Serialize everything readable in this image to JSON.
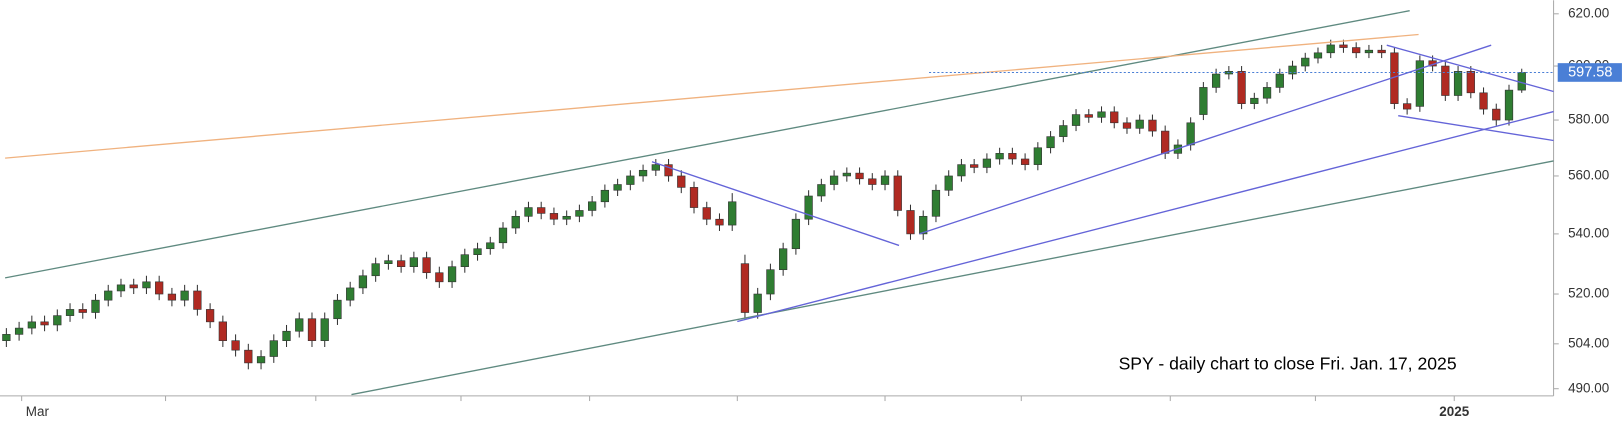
{
  "chart_data": {
    "type": "candlestick",
    "annotation": "SPY - daily chart to close Fri. Jan. 17, 2025",
    "up_color": "#2f7d32",
    "down_color": "#b02a22",
    "log_scale": true,
    "ylim": [
      487.8,
      625.3
    ],
    "yticks": [
      {
        "value": 620,
        "label": "620.00"
      },
      {
        "value": 600,
        "label": "600.00"
      },
      {
        "value": 580,
        "label": "580.00"
      },
      {
        "value": 560,
        "label": "560.00"
      },
      {
        "value": 540,
        "label": "540.00"
      },
      {
        "value": 520,
        "label": "520.00"
      },
      {
        "value": 504,
        "label": "504.00"
      },
      {
        "value": 490,
        "label": "490.00"
      }
    ],
    "xlim": [
      -0.5,
      121.5
    ],
    "xticks": [
      {
        "value": 1.2,
        "label": "Mar"
      },
      {
        "value": 113.7,
        "label": "2025"
      }
    ],
    "xticks_minor": [
      12.5,
      24.3,
      35.7,
      45.8,
      57.4,
      69.0,
      79.7,
      91.4,
      102.8
    ],
    "candles": [
      [
        505,
        509,
        503,
        507
      ],
      [
        507,
        511,
        505,
        509
      ],
      [
        509,
        513,
        507,
        511
      ],
      [
        511,
        513,
        508,
        510
      ],
      [
        510,
        515,
        508,
        513
      ],
      [
        513,
        517,
        511,
        515
      ],
      [
        515,
        517,
        512,
        514
      ],
      [
        514,
        520,
        512,
        518
      ],
      [
        518,
        523,
        516,
        521
      ],
      [
        521,
        525,
        519,
        523
      ],
      [
        523,
        525,
        520,
        522
      ],
      [
        522,
        526,
        520,
        524
      ],
      [
        524,
        526,
        518,
        520
      ],
      [
        520,
        522,
        516,
        518
      ],
      [
        518,
        523,
        516,
        521
      ],
      [
        521,
        523,
        513,
        515
      ],
      [
        515,
        517,
        509,
        511
      ],
      [
        511,
        513,
        503,
        505
      ],
      [
        505,
        507,
        500,
        502
      ],
      [
        502,
        504,
        496,
        498
      ],
      [
        498,
        502,
        496,
        500
      ],
      [
        500,
        507,
        498,
        505
      ],
      [
        505,
        510,
        503,
        508
      ],
      [
        508,
        514,
        506,
        512
      ],
      [
        512,
        514,
        503,
        505
      ],
      [
        505,
        514,
        503,
        512
      ],
      [
        512,
        520,
        510,
        518
      ],
      [
        518,
        524,
        516,
        522
      ],
      [
        522,
        528,
        520,
        526
      ],
      [
        526,
        532,
        524,
        530
      ],
      [
        530,
        533,
        528,
        531
      ],
      [
        531,
        533,
        527,
        529
      ],
      [
        529,
        534,
        527,
        532
      ],
      [
        532,
        534,
        525,
        527
      ],
      [
        527,
        529,
        522,
        524
      ],
      [
        524,
        531,
        522,
        529
      ],
      [
        529,
        535,
        527,
        533
      ],
      [
        533,
        537,
        531,
        535
      ],
      [
        535,
        539,
        533,
        537
      ],
      [
        537,
        544,
        535,
        542
      ],
      [
        542,
        548,
        540,
        546
      ],
      [
        546,
        551,
        544,
        549
      ],
      [
        549,
        551,
        545,
        547
      ],
      [
        547,
        549,
        543,
        545
      ],
      [
        545,
        548,
        543,
        546
      ],
      [
        546,
        550,
        544,
        548
      ],
      [
        548,
        553,
        546,
        551
      ],
      [
        551,
        557,
        549,
        555
      ],
      [
        555,
        559,
        553,
        557
      ],
      [
        557,
        562,
        555,
        560
      ],
      [
        560,
        564,
        558,
        562
      ],
      [
        562,
        566,
        560,
        564
      ],
      [
        564,
        566,
        558,
        560
      ],
      [
        560,
        562,
        554,
        556
      ],
      [
        556,
        558,
        547,
        549
      ],
      [
        549,
        551,
        543,
        545
      ],
      [
        545,
        547,
        541,
        543
      ],
      [
        543,
        554,
        541,
        551
      ],
      [
        530,
        533,
        512,
        514
      ],
      [
        514,
        522,
        512,
        520
      ],
      [
        520,
        530,
        518,
        528
      ],
      [
        528,
        537,
        526,
        535
      ],
      [
        535,
        547,
        533,
        545
      ],
      [
        545,
        555,
        543,
        553
      ],
      [
        553,
        559,
        551,
        557
      ],
      [
        557,
        562,
        555,
        560
      ],
      [
        560,
        563,
        558,
        561
      ],
      [
        561,
        563,
        557,
        559
      ],
      [
        559,
        561,
        555,
        557
      ],
      [
        557,
        562,
        555,
        560
      ],
      [
        560,
        562,
        546,
        548
      ],
      [
        548,
        550,
        538,
        540
      ],
      [
        540,
        548,
        538,
        546
      ],
      [
        546,
        557,
        544,
        555
      ],
      [
        555,
        562,
        553,
        560
      ],
      [
        560,
        566,
        558,
        564
      ],
      [
        564,
        566,
        561,
        563
      ],
      [
        563,
        568,
        561,
        566
      ],
      [
        566,
        570,
        564,
        568
      ],
      [
        568,
        570,
        564,
        566
      ],
      [
        566,
        568,
        562,
        564
      ],
      [
        564,
        572,
        562,
        570
      ],
      [
        570,
        576,
        568,
        574
      ],
      [
        574,
        580,
        572,
        578
      ],
      [
        578,
        584,
        576,
        582
      ],
      [
        582,
        584,
        579,
        581
      ],
      [
        581,
        585,
        579,
        583
      ],
      [
        583,
        585,
        577,
        579
      ],
      [
        579,
        581,
        575,
        577
      ],
      [
        577,
        582,
        575,
        580
      ],
      [
        580,
        582,
        574,
        576
      ],
      [
        576,
        578,
        566,
        568
      ],
      [
        568,
        573,
        566,
        571
      ],
      [
        571,
        581,
        569,
        579
      ],
      [
        582,
        594,
        580,
        592
      ],
      [
        592,
        599,
        590,
        597
      ],
      [
        597,
        600,
        595,
        598
      ],
      [
        598,
        600,
        584,
        586
      ],
      [
        586,
        590,
        584,
        588
      ],
      [
        588,
        594,
        586,
        592
      ],
      [
        592,
        599,
        590,
        597
      ],
      [
        597,
        602,
        595,
        600
      ],
      [
        600,
        605,
        598,
        603
      ],
      [
        603,
        607,
        601,
        605
      ],
      [
        605,
        610,
        603,
        608
      ],
      [
        608,
        610,
        605,
        607
      ],
      [
        607,
        609,
        603,
        605
      ],
      [
        605,
        608,
        603,
        606
      ],
      [
        606,
        608,
        603,
        605
      ],
      [
        605,
        607,
        584,
        586
      ],
      [
        586,
        588,
        582,
        584
      ],
      [
        585,
        604,
        583,
        602
      ],
      [
        602,
        604,
        598,
        600
      ],
      [
        600,
        602,
        587,
        589
      ],
      [
        589,
        600,
        587,
        598
      ],
      [
        598,
        600,
        588,
        590
      ],
      [
        590,
        592,
        582,
        584
      ],
      [
        584,
        586,
        578,
        580
      ],
      [
        580,
        593,
        578,
        591
      ],
      [
        591,
        599,
        590,
        597.58
      ]
    ],
    "lines": [
      {
        "color": "#5f8a80",
        "points": [
          [
            -0.1,
            525.3
          ],
          [
            110.2,
            621.2
          ]
        ]
      },
      {
        "color": "#5f8a80",
        "points": [
          [
            27.1,
            488.2
          ],
          [
            121.5,
            565.3
          ]
        ]
      },
      {
        "color": "#f0b27f",
        "points": [
          [
            -0.1,
            566.3
          ],
          [
            110.9,
            612.0
          ]
        ]
      },
      {
        "color": "#6464d8",
        "points": [
          [
            50.7,
            565.0
          ],
          [
            70.1,
            536.1
          ]
        ]
      },
      {
        "color": "#6464d8",
        "points": [
          [
            57.4,
            511.1
          ],
          [
            121.5,
            583.1
          ]
        ]
      },
      {
        "color": "#6464d8",
        "points": [
          [
            71.7,
            540.0
          ],
          [
            116.6,
            607.9
          ]
        ]
      },
      {
        "color": "#6464d8",
        "points": [
          [
            108.4,
            607.9
          ],
          [
            121.5,
            590.5
          ]
        ]
      },
      {
        "color": "#6464d8",
        "points": [
          [
            109.3,
            581.6
          ],
          [
            121.5,
            572.6
          ]
        ]
      }
    ]
  }
}
